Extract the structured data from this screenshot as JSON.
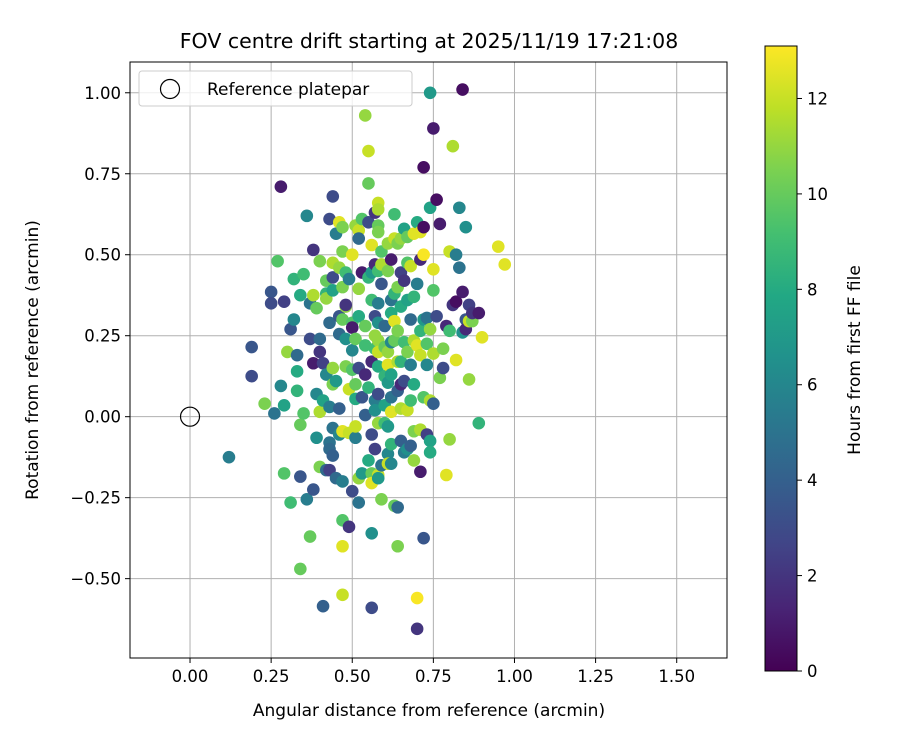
{
  "chart_data": {
    "type": "scatter",
    "title": "FOV centre drift starting at 2025/11/19 17:21:08",
    "xlabel": "Angular distance from reference (arcmin)",
    "ylabel": "Rotation from reference (arcmin)",
    "xlim": [
      -0.185,
      1.655
    ],
    "ylim": [
      -0.745,
      1.095
    ],
    "xticks": [
      0.0,
      0.25,
      0.5,
      0.75,
      1.0,
      1.25,
      1.5
    ],
    "xtick_labels": [
      "0.00",
      "0.25",
      "0.50",
      "0.75",
      "1.00",
      "1.25",
      "1.50"
    ],
    "yticks": [
      -0.5,
      -0.25,
      0.0,
      0.25,
      0.5,
      0.75,
      1.0
    ],
    "ytick_labels": [
      "−0.50",
      "−0.25",
      "0.00",
      "0.25",
      "0.50",
      "0.75",
      "1.00"
    ],
    "grid": true,
    "colormap": "viridis",
    "colorbar": {
      "label": "Hours from first FF file",
      "range": [
        0,
        13.1
      ],
      "ticks": [
        0,
        2,
        4,
        6,
        8,
        10,
        12
      ],
      "tick_labels": [
        "0",
        "2",
        "4",
        "6",
        "8",
        "10",
        "12"
      ]
    },
    "legend": {
      "label": "Reference platepar",
      "position": "top-left"
    },
    "reference_point": {
      "x": 0.0,
      "y": 0.0
    },
    "points": [
      [
        0.12,
        -0.125,
        5.5
      ],
      [
        0.19,
        0.215,
        3.5
      ],
      [
        0.19,
        0.125,
        3.0
      ],
      [
        0.23,
        0.04,
        10.5
      ],
      [
        0.25,
        0.385,
        3.5
      ],
      [
        0.25,
        0.35,
        3.0
      ],
      [
        0.26,
        0.01,
        5.0
      ],
      [
        0.27,
        0.48,
        9.5
      ],
      [
        0.28,
        0.71,
        1.0
      ],
      [
        0.28,
        0.095,
        6.0
      ],
      [
        0.29,
        0.035,
        7.5
      ],
      [
        0.29,
        -0.175,
        9.5
      ],
      [
        0.29,
        0.355,
        2.5
      ],
      [
        0.3,
        0.2,
        11.0
      ],
      [
        0.31,
        0.27,
        3.5
      ],
      [
        0.31,
        -0.265,
        9.0
      ],
      [
        0.32,
        0.3,
        6.0
      ],
      [
        0.32,
        0.425,
        8.5
      ],
      [
        0.33,
        0.08,
        8.5
      ],
      [
        0.33,
        0.14,
        8.0
      ],
      [
        0.33,
        0.19,
        4.5
      ],
      [
        0.34,
        -0.185,
        3.5
      ],
      [
        0.34,
        -0.47,
        10.0
      ],
      [
        0.34,
        0.375,
        8.0
      ],
      [
        0.34,
        -0.025,
        10.0
      ],
      [
        0.35,
        0.44,
        9.0
      ],
      [
        0.35,
        0.01,
        9.5
      ],
      [
        0.36,
        0.62,
        6.0
      ],
      [
        0.36,
        -0.255,
        5.5
      ],
      [
        0.37,
        0.24,
        3.0
      ],
      [
        0.37,
        0.35,
        5.0
      ],
      [
        0.37,
        -0.37,
        10.0
      ],
      [
        0.38,
        0.515,
        2.0
      ],
      [
        0.38,
        0.165,
        1.0
      ],
      [
        0.38,
        0.375,
        11.5
      ],
      [
        0.38,
        -0.225,
        3.5
      ],
      [
        0.39,
        0.07,
        6.0
      ],
      [
        0.39,
        -0.065,
        6.5
      ],
      [
        0.39,
        0.335,
        10.0
      ],
      [
        0.4,
        0.48,
        10.5
      ],
      [
        0.4,
        0.015,
        11.5
      ],
      [
        0.4,
        -0.155,
        10.5
      ],
      [
        0.4,
        0.24,
        4.5
      ],
      [
        0.4,
        0.2,
        2.0
      ],
      [
        0.41,
        -0.585,
        4.0
      ],
      [
        0.41,
        0.165,
        2.5
      ],
      [
        0.41,
        0.05,
        7.5
      ],
      [
        0.42,
        0.42,
        10.0
      ],
      [
        0.42,
        0.38,
        8.5
      ],
      [
        0.42,
        0.13,
        6.0
      ],
      [
        0.42,
        0.365,
        11.0
      ],
      [
        0.42,
        -0.165,
        4.5
      ],
      [
        0.43,
        0.61,
        3.0
      ],
      [
        0.43,
        0.29,
        4.5
      ],
      [
        0.43,
        -0.08,
        5.0
      ],
      [
        0.43,
        0.03,
        5.5
      ],
      [
        0.43,
        -0.1,
        4.5
      ],
      [
        0.43,
        -0.165,
        2.5
      ],
      [
        0.44,
        0.68,
        3.0
      ],
      [
        0.44,
        0.475,
        11.5
      ],
      [
        0.44,
        0.43,
        3.0
      ],
      [
        0.44,
        0.15,
        11.0
      ],
      [
        0.44,
        0.1,
        10.5
      ],
      [
        0.44,
        -0.035,
        5.0
      ],
      [
        0.44,
        0.39,
        7.5
      ],
      [
        0.44,
        -0.12,
        4.0
      ],
      [
        0.45,
        0.565,
        5.5
      ],
      [
        0.45,
        -0.19,
        4.5
      ],
      [
        0.45,
        0.11,
        7.0
      ],
      [
        0.46,
        0.6,
        12.5
      ],
      [
        0.46,
        0.255,
        4.5
      ],
      [
        0.46,
        0.025,
        4.0
      ],
      [
        0.46,
        -0.055,
        6.0
      ],
      [
        0.46,
        0.46,
        11.0
      ],
      [
        0.46,
        0.31,
        3.5
      ],
      [
        0.47,
        0.51,
        10.5
      ],
      [
        0.47,
        0.585,
        10.5
      ],
      [
        0.47,
        0.4,
        10.5
      ],
      [
        0.47,
        0.3,
        10.0
      ],
      [
        0.47,
        -0.55,
        12.0
      ],
      [
        0.47,
        -0.4,
        12.5
      ],
      [
        0.47,
        -0.2,
        5.5
      ],
      [
        0.47,
        -0.045,
        12.5
      ],
      [
        0.47,
        -0.32,
        9.5
      ],
      [
        0.48,
        0.445,
        9.0
      ],
      [
        0.48,
        0.34,
        11.0
      ],
      [
        0.48,
        0.345,
        2.0
      ],
      [
        0.48,
        0.24,
        6.5
      ],
      [
        0.48,
        0.155,
        10.5
      ],
      [
        0.49,
        0.425,
        5.5
      ],
      [
        0.49,
        -0.34,
        2.0
      ],
      [
        0.49,
        0.085,
        12.0
      ],
      [
        0.49,
        -0.05,
        12.0
      ],
      [
        0.5,
        0.29,
        9.5
      ],
      [
        0.5,
        0.5,
        12.5
      ],
      [
        0.5,
        0.205,
        6.0
      ],
      [
        0.5,
        0.145,
        9.5
      ],
      [
        0.5,
        -0.23,
        3.0
      ],
      [
        0.5,
        0.275,
        1.0
      ],
      [
        0.51,
        0.1,
        10.0
      ],
      [
        0.51,
        0.59,
        11.0
      ],
      [
        0.51,
        -0.065,
        5.5
      ],
      [
        0.51,
        -0.03,
        12.0
      ],
      [
        0.51,
        0.055,
        8.0
      ],
      [
        0.51,
        0.24,
        10.0
      ],
      [
        0.52,
        0.575,
        12.0
      ],
      [
        0.52,
        0.55,
        4.5
      ],
      [
        0.52,
        -0.19,
        11.0
      ],
      [
        0.52,
        -0.265,
        5.0
      ],
      [
        0.52,
        0.31,
        8.0
      ],
      [
        0.52,
        0.15,
        3.0
      ],
      [
        0.52,
        0.395,
        11.0
      ],
      [
        0.53,
        0.61,
        9.5
      ],
      [
        0.53,
        0.445,
        1.0
      ],
      [
        0.53,
        0.06,
        3.5
      ],
      [
        0.53,
        -0.175,
        7.0
      ],
      [
        0.54,
        0.93,
        11.0
      ],
      [
        0.54,
        0.28,
        10.0
      ],
      [
        0.54,
        0.13,
        1.5
      ],
      [
        0.54,
        0.005,
        4.0
      ],
      [
        0.54,
        0.22,
        9.0
      ],
      [
        0.55,
        0.82,
        12.0
      ],
      [
        0.55,
        0.72,
        10.0
      ],
      [
        0.55,
        0.6,
        3.0
      ],
      [
        0.55,
        0.09,
        8.5
      ],
      [
        0.55,
        -0.135,
        8.0
      ],
      [
        0.55,
        0.43,
        8.5
      ],
      [
        0.56,
        0.53,
        12.5
      ],
      [
        0.56,
        0.445,
        7.0
      ],
      [
        0.56,
        0.36,
        9.0
      ],
      [
        0.56,
        -0.055,
        3.0
      ],
      [
        0.56,
        0.17,
        1.5
      ],
      [
        0.56,
        -0.36,
        6.5
      ],
      [
        0.56,
        -0.59,
        3.0
      ],
      [
        0.56,
        -0.175,
        10.0
      ],
      [
        0.56,
        -0.205,
        12.5
      ],
      [
        0.57,
        0.47,
        1.5
      ],
      [
        0.57,
        0.63,
        2.0
      ],
      [
        0.57,
        0.25,
        11.0
      ],
      [
        0.57,
        0.21,
        9.0
      ],
      [
        0.57,
        0.05,
        5.5
      ],
      [
        0.57,
        0.02,
        6.5
      ],
      [
        0.57,
        -0.1,
        2.5
      ],
      [
        0.57,
        0.31,
        3.0
      ],
      [
        0.58,
        0.66,
        12.0
      ],
      [
        0.58,
        0.64,
        11.5
      ],
      [
        0.58,
        0.59,
        10.0
      ],
      [
        0.58,
        0.57,
        10.5
      ],
      [
        0.58,
        0.45,
        9.0
      ],
      [
        0.58,
        0.35,
        5.5
      ],
      [
        0.58,
        0.29,
        6.5
      ],
      [
        0.58,
        0.235,
        11.0
      ],
      [
        0.58,
        0.2,
        12.0
      ],
      [
        0.58,
        0.155,
        8.0
      ],
      [
        0.58,
        0.07,
        3.0
      ],
      [
        0.58,
        -0.02,
        11.0
      ],
      [
        0.58,
        -0.18,
        12.0
      ],
      [
        0.58,
        -0.19,
        7.0
      ],
      [
        0.59,
        0.51,
        9.5
      ],
      [
        0.59,
        0.47,
        11.5
      ],
      [
        0.59,
        0.41,
        3.5
      ],
      [
        0.59,
        -0.15,
        5.0
      ],
      [
        0.59,
        -0.255,
        10.5
      ],
      [
        0.6,
        0.215,
        10.0
      ],
      [
        0.6,
        0.125,
        8.5
      ],
      [
        0.6,
        0.035,
        7.5
      ],
      [
        0.6,
        -0.02,
        9.0
      ],
      [
        0.6,
        0.28,
        4.5
      ],
      [
        0.61,
        0.535,
        11.0
      ],
      [
        0.61,
        0.45,
        10.5
      ],
      [
        0.61,
        0.16,
        12.5
      ],
      [
        0.61,
        0.2,
        11.0
      ],
      [
        0.61,
        0.105,
        7.0
      ],
      [
        0.61,
        -0.03,
        7.0
      ],
      [
        0.61,
        -0.115,
        6.0
      ],
      [
        0.61,
        -0.145,
        12.0
      ],
      [
        0.62,
        0.485,
        1.0
      ],
      [
        0.62,
        0.36,
        5.0
      ],
      [
        0.62,
        0.32,
        8.0
      ],
      [
        0.62,
        0.23,
        6.0
      ],
      [
        0.62,
        0.13,
        7.5
      ],
      [
        0.62,
        0.06,
        5.0
      ],
      [
        0.62,
        0.015,
        12.5
      ],
      [
        0.62,
        -0.085,
        8.5
      ],
      [
        0.62,
        -0.145,
        6.0
      ],
      [
        0.63,
        0.625,
        9.0
      ],
      [
        0.63,
        0.55,
        12.0
      ],
      [
        0.63,
        0.38,
        8.5
      ],
      [
        0.63,
        0.295,
        12.5
      ],
      [
        0.63,
        0.235,
        10.0
      ],
      [
        0.63,
        -0.275,
        10.0
      ],
      [
        0.64,
        0.535,
        10.5
      ],
      [
        0.64,
        0.4,
        10.5
      ],
      [
        0.64,
        0.265,
        10.5
      ],
      [
        0.64,
        0.17,
        11.5
      ],
      [
        0.64,
        0.08,
        4.0
      ],
      [
        0.64,
        -0.4,
        10.5
      ],
      [
        0.64,
        -0.28,
        4.5
      ],
      [
        0.65,
        0.55,
        11.0
      ],
      [
        0.65,
        0.445,
        2.5
      ],
      [
        0.65,
        0.34,
        8.0
      ],
      [
        0.65,
        0.17,
        8.5
      ],
      [
        0.65,
        0.1,
        1.5
      ],
      [
        0.65,
        0.025,
        11.5
      ],
      [
        0.65,
        -0.075,
        4.0
      ],
      [
        0.66,
        0.58,
        7.5
      ],
      [
        0.66,
        0.42,
        2.0
      ],
      [
        0.66,
        0.23,
        9.0
      ],
      [
        0.66,
        0.11,
        3.0
      ],
      [
        0.66,
        -0.11,
        5.5
      ],
      [
        0.67,
        0.555,
        10.0
      ],
      [
        0.67,
        0.475,
        9.5
      ],
      [
        0.67,
        0.36,
        7.5
      ],
      [
        0.67,
        0.2,
        10.5
      ],
      [
        0.67,
        0.02,
        12.0
      ],
      [
        0.67,
        -0.1,
        6.5
      ],
      [
        0.68,
        0.465,
        12.0
      ],
      [
        0.68,
        0.3,
        4.5
      ],
      [
        0.68,
        0.16,
        5.5
      ],
      [
        0.68,
        0.05,
        9.0
      ],
      [
        0.68,
        -0.09,
        4.0
      ],
      [
        0.69,
        0.565,
        12.5
      ],
      [
        0.69,
        0.37,
        8.5
      ],
      [
        0.69,
        0.235,
        11.5
      ],
      [
        0.69,
        0.1,
        8.0
      ],
      [
        0.69,
        -0.045,
        10.5
      ],
      [
        0.69,
        -0.135,
        11.0
      ],
      [
        0.7,
        0.6,
        8.0
      ],
      [
        0.7,
        0.41,
        5.5
      ],
      [
        0.7,
        0.22,
        12.5
      ],
      [
        0.7,
        -0.56,
        13.0
      ],
      [
        0.7,
        -0.655,
        2.0
      ],
      [
        0.71,
        0.57,
        12.5
      ],
      [
        0.71,
        0.485,
        1.5
      ],
      [
        0.71,
        0.265,
        8.5
      ],
      [
        0.71,
        0.19,
        12.0
      ],
      [
        0.71,
        -0.04,
        11.5
      ],
      [
        0.71,
        -0.17,
        1.0
      ],
      [
        0.72,
        0.77,
        0.5
      ],
      [
        0.72,
        0.5,
        13.0
      ],
      [
        0.72,
        0.585,
        0.5
      ],
      [
        0.72,
        0.3,
        7.0
      ],
      [
        0.72,
        0.06,
        9.5
      ],
      [
        0.72,
        -0.375,
        3.5
      ],
      [
        0.73,
        0.305,
        5.0
      ],
      [
        0.73,
        0.225,
        9.5
      ],
      [
        0.73,
        0.16,
        6.0
      ],
      [
        0.73,
        -0.055,
        2.5
      ],
      [
        0.74,
        1.0,
        7.0
      ],
      [
        0.74,
        0.645,
        7.5
      ],
      [
        0.74,
        0.27,
        11.0
      ],
      [
        0.74,
        0.05,
        11.5
      ],
      [
        0.74,
        -0.075,
        7.5
      ],
      [
        0.74,
        -0.11,
        8.0
      ],
      [
        0.75,
        0.455,
        12.5
      ],
      [
        0.75,
        0.39,
        9.5
      ],
      [
        0.75,
        0.195,
        11.5
      ],
      [
        0.75,
        0.04,
        4.0
      ],
      [
        0.75,
        0.89,
        1.0
      ],
      [
        0.76,
        0.67,
        0.5
      ],
      [
        0.76,
        0.31,
        3.0
      ],
      [
        0.77,
        0.595,
        1.0
      ],
      [
        0.77,
        0.12,
        10.5
      ],
      [
        0.78,
        0.15,
        3.0
      ],
      [
        0.78,
        0.21,
        10.5
      ],
      [
        0.79,
        0.28,
        1.5
      ],
      [
        0.79,
        -0.18,
        12.5
      ],
      [
        0.8,
        0.51,
        12.0
      ],
      [
        0.8,
        0.265,
        9.0
      ],
      [
        0.8,
        -0.07,
        11.0
      ],
      [
        0.81,
        0.835,
        11.5
      ],
      [
        0.81,
        0.345,
        2.0
      ],
      [
        0.82,
        0.175,
        12.5
      ],
      [
        0.82,
        0.5,
        5.5
      ],
      [
        0.82,
        0.355,
        0.5
      ],
      [
        0.83,
        0.645,
        6.0
      ],
      [
        0.83,
        0.46,
        5.0
      ],
      [
        0.84,
        0.385,
        1.0
      ],
      [
        0.84,
        0.26,
        6.5
      ],
      [
        0.84,
        1.01,
        0.5
      ],
      [
        0.85,
        0.585,
        6.5
      ],
      [
        0.85,
        0.3,
        3.5
      ],
      [
        0.85,
        0.27,
        1.5
      ],
      [
        0.86,
        0.115,
        11.0
      ],
      [
        0.86,
        0.345,
        2.5
      ],
      [
        0.86,
        0.295,
        12.0
      ],
      [
        0.87,
        0.295,
        10.5
      ],
      [
        0.87,
        0.32,
        2.0
      ],
      [
        0.89,
        0.32,
        1.0
      ],
      [
        0.89,
        -0.02,
        8.5
      ],
      [
        0.9,
        0.245,
        12.5
      ],
      [
        0.95,
        0.525,
        12.5
      ],
      [
        0.97,
        0.47,
        12.5
      ]
    ]
  }
}
